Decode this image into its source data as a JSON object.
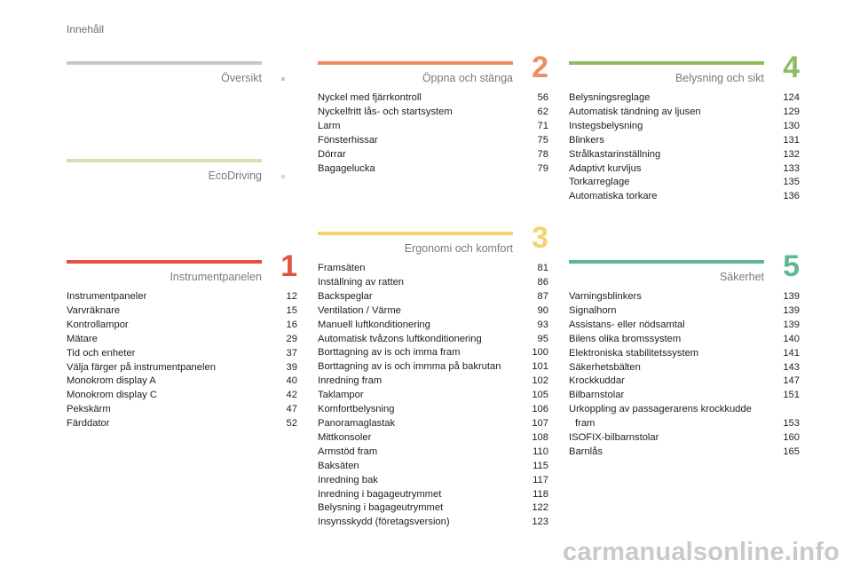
{
  "page_title": "Innehåll",
  "colors": {
    "oversikt": "#c8c8c8",
    "ecodriving": "#cfe3b2",
    "instrumentpanelen": "#e25240",
    "oppna": "#ee8d62",
    "ergonomi": "#f3d36e",
    "belysning": "#8fbc61",
    "sakerhet": "#5fb88f"
  },
  "sections": {
    "oversikt": {
      "title": "Översikt",
      "number": ""
    },
    "ecodriving": {
      "title": "EcoDriving",
      "number": ""
    },
    "instrumentpanelen": {
      "title": "Instrumentpanelen",
      "number": "1",
      "items": [
        {
          "label": "Instrumentpaneler",
          "page": "12"
        },
        {
          "label": "Varvräknare",
          "page": "15"
        },
        {
          "label": "Kontrollampor",
          "page": "16"
        },
        {
          "label": "Mätare",
          "page": "29"
        },
        {
          "label": "Tid och enheter",
          "page": "37"
        },
        {
          "label": "Välja färger på instrumentpanelen",
          "page": "39"
        },
        {
          "label": "Monokrom display A",
          "page": "40"
        },
        {
          "label": "Monokrom display C",
          "page": "42"
        },
        {
          "label": "Pekskärm",
          "page": "47"
        },
        {
          "label": "Färddator",
          "page": "52"
        }
      ]
    },
    "oppna": {
      "title": "Öppna och stänga",
      "number": "2",
      "items": [
        {
          "label": "Nyckel med fjärrkontroll",
          "page": "56"
        },
        {
          "label": "Nyckelfritt lås- och startsystem",
          "page": "62"
        },
        {
          "label": "Larm",
          "page": "71"
        },
        {
          "label": "Fönsterhissar",
          "page": "75"
        },
        {
          "label": "Dörrar",
          "page": "78"
        },
        {
          "label": "Bagagelucka",
          "page": "79"
        }
      ]
    },
    "ergonomi": {
      "title": "Ergonomi och komfort",
      "number": "3",
      "items": [
        {
          "label": "Framsäten",
          "page": "81"
        },
        {
          "label": "Inställning av ratten",
          "page": "86"
        },
        {
          "label": "Backspeglar",
          "page": "87"
        },
        {
          "label": "Ventilation / Värme",
          "page": "90"
        },
        {
          "label": "Manuell luftkonditionering",
          "page": "93"
        },
        {
          "label": "Automatisk tvåzons luftkonditionering",
          "page": "95"
        },
        {
          "label": "Borttagning av is och imma fram",
          "page": "100"
        },
        {
          "label": "Borttagning av is och immma på bakrutan",
          "page": "101"
        },
        {
          "label": "Inredning fram",
          "page": "102"
        },
        {
          "label": "Taklampor",
          "page": "105"
        },
        {
          "label": "Komfortbelysning",
          "page": "106"
        },
        {
          "label": "Panoramaglastak",
          "page": "107"
        },
        {
          "label": "Mittkonsoler",
          "page": "108"
        },
        {
          "label": "Armstöd fram",
          "page": "110"
        },
        {
          "label": "Baksäten",
          "page": "115"
        },
        {
          "label": "Inredning bak",
          "page": "117"
        },
        {
          "label": "Inredning i bagageutrymmet",
          "page": "118"
        },
        {
          "label": "Belysning i bagageutrymmet",
          "page": "122"
        },
        {
          "label": "Insynsskydd (företagsversion)",
          "page": "123"
        }
      ]
    },
    "belysning": {
      "title": "Belysning och sikt",
      "number": "4",
      "items": [
        {
          "label": "Belysningsreglage",
          "page": "124"
        },
        {
          "label": "Automatisk tändning av ljusen",
          "page": "129"
        },
        {
          "label": "Instegsbelysning",
          "page": "130"
        },
        {
          "label": "Blinkers",
          "page": "131"
        },
        {
          "label": "Strålkastarinställning",
          "page": "132"
        },
        {
          "label": "Adaptivt kurvljus",
          "page": "133"
        },
        {
          "label": "Torkarreglage",
          "page": "135"
        },
        {
          "label": "Automatiska torkare",
          "page": "136"
        }
      ]
    },
    "sakerhet": {
      "title": "Säkerhet",
      "number": "5",
      "items": [
        {
          "label": "Varningsblinkers",
          "page": "139"
        },
        {
          "label": "Signalhorn",
          "page": "139"
        },
        {
          "label": "Assistans- eller nödsamtal",
          "page": "139"
        },
        {
          "label": "Bilens olika bromssystem",
          "page": "140"
        },
        {
          "label": "Elektroniska stabilitetssystem",
          "page": "141"
        },
        {
          "label": "Säkerhetsbälten",
          "page": "143"
        },
        {
          "label": "Krockkuddar",
          "page": "147"
        },
        {
          "label": "Bilbarnstolar",
          "page": "151"
        }
      ],
      "wrapped_item": {
        "label_line1": "Urkoppling av passagerarens krockkudde",
        "label_line2": "fram",
        "page": "153"
      },
      "items_after": [
        {
          "label": "ISOFIX-bilbarnstolar",
          "page": "160"
        },
        {
          "label": "Barnlås",
          "page": "165"
        }
      ]
    }
  },
  "watermark": "carmanualsonline.info"
}
